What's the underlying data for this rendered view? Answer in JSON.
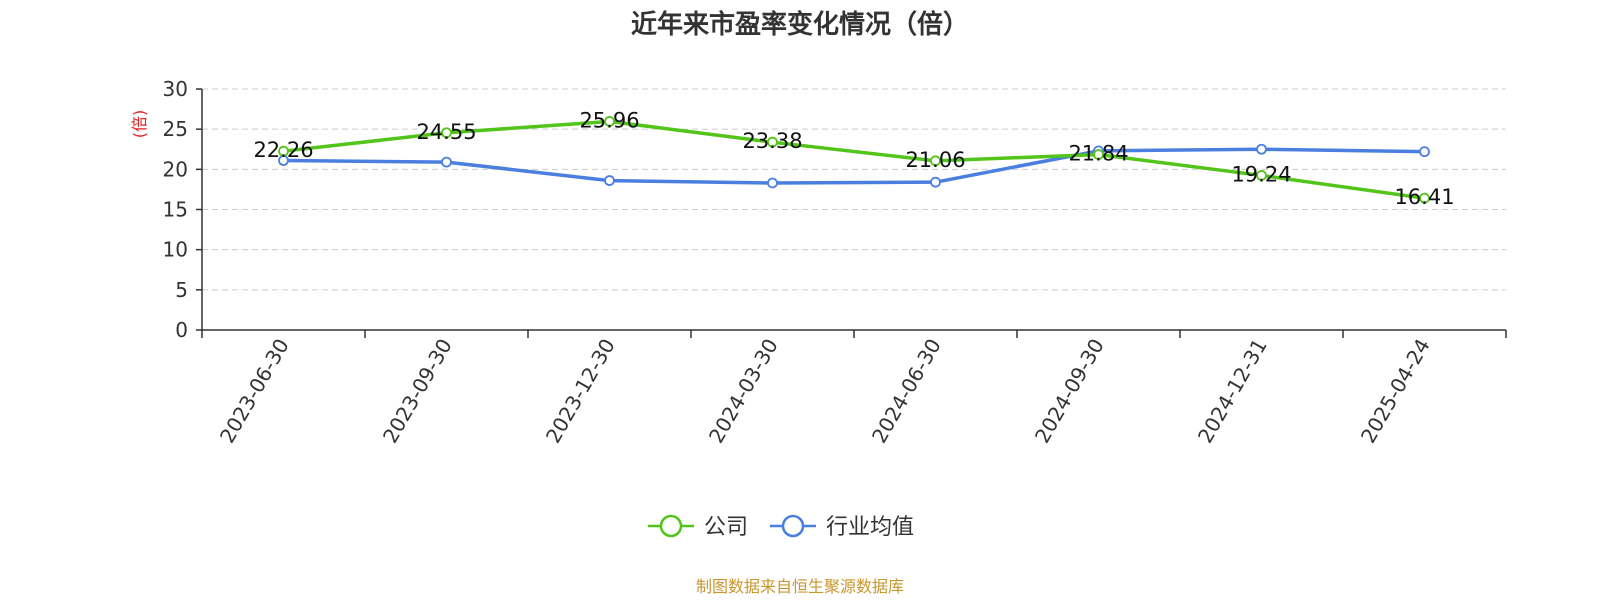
{
  "chart_data": {
    "type": "line",
    "title": "近年来市盈率变化情况（倍）",
    "ylabel": "(倍)",
    "xlabel": "",
    "ylim": [
      0,
      30
    ],
    "yticks": [
      0,
      5,
      10,
      15,
      20,
      25,
      30
    ],
    "grid": true,
    "legend_position": "bottom",
    "categories": [
      "2023-06-30",
      "2023-09-30",
      "2023-12-30",
      "2024-03-30",
      "2024-06-30",
      "2024-09-30",
      "2024-12-31",
      "2025-04-24"
    ],
    "series": [
      {
        "name": "公司",
        "color": "#52c41a",
        "values": [
          22.26,
          24.55,
          25.96,
          23.38,
          21.06,
          21.84,
          19.24,
          16.41
        ],
        "labels": [
          "22.26",
          "24.55",
          "25.96",
          "23.38",
          "21.06",
          "21.84",
          "19.24",
          "16.41"
        ]
      },
      {
        "name": "行业均值",
        "color": "#4a7fe0",
        "values": [
          21.1,
          20.9,
          18.6,
          18.3,
          18.4,
          22.3,
          22.5,
          22.2
        ]
      }
    ],
    "source": "制图数据来自恒生聚源数据库",
    "colors": {
      "ylabel": "#e02020",
      "source": "#c8962e",
      "grid": "#cccccc",
      "axis": "#333333"
    }
  }
}
